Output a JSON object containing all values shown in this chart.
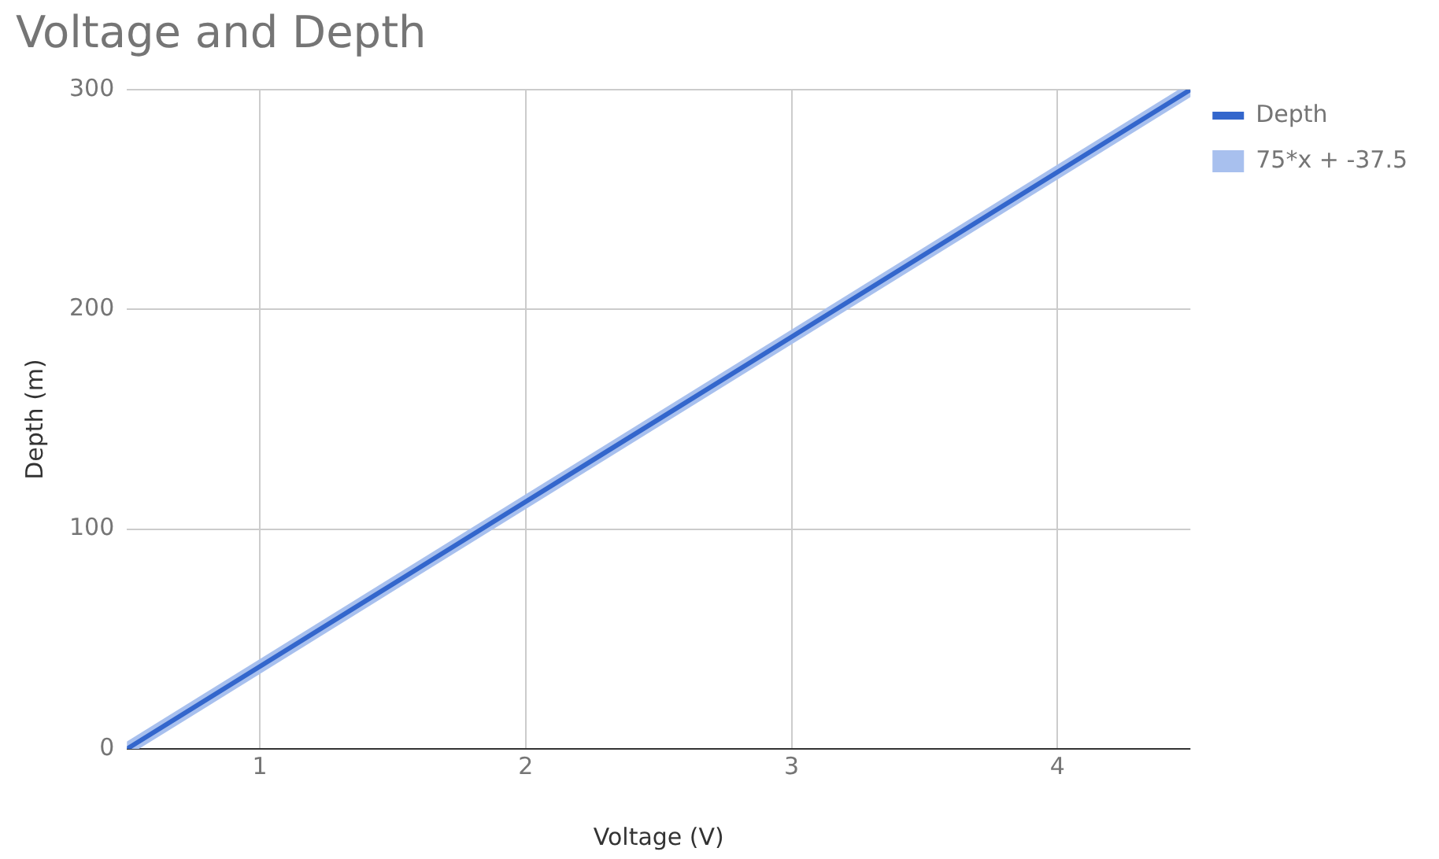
{
  "chart_data": {
    "type": "line",
    "title": "Voltage and Depth",
    "xlabel": "Voltage (V)",
    "ylabel": "Depth (m)",
    "x": [
      0.5,
      1,
      2,
      3,
      4,
      4.5
    ],
    "series": [
      {
        "name": "Depth",
        "color": "#3366cc",
        "values": [
          0,
          37.5,
          112.5,
          187.5,
          262.5,
          300
        ]
      },
      {
        "name": "75*x + -37.5",
        "type": "line",
        "color": "#a8c0ee",
        "x": [
          0.5,
          4.5
        ],
        "values": [
          0,
          300
        ]
      }
    ],
    "xlim": [
      0.5,
      4.5
    ],
    "xticks": [
      1,
      2,
      3,
      4
    ],
    "ylim": [
      0,
      300
    ],
    "yticks": [
      0,
      100,
      200,
      300
    ],
    "grid": true,
    "legend": "top right",
    "marker": "none",
    "line_style": "solid"
  }
}
